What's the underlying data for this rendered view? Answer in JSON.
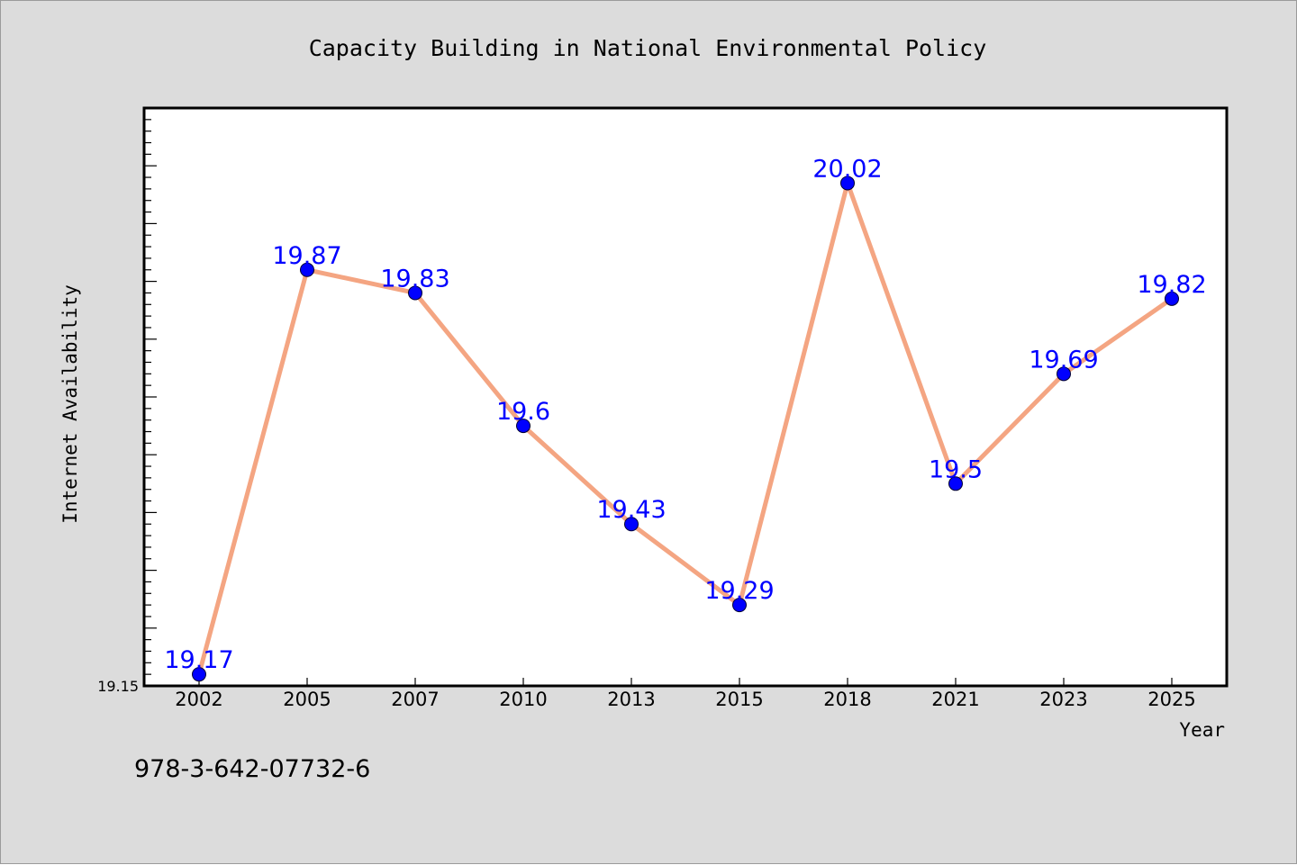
{
  "chart_data": {
    "type": "line",
    "title": "Capacity Building in National Environmental Policy",
    "xlabel": "Year",
    "ylabel": "Internet Availability",
    "categories": [
      "2002",
      "2005",
      "2007",
      "2010",
      "2013",
      "2015",
      "2018",
      "2021",
      "2023",
      "2025"
    ],
    "series": [
      {
        "values": [
          19.17,
          19.87,
          19.83,
          19.6,
          19.43,
          19.29,
          20.02,
          19.5,
          19.69,
          19.82
        ],
        "point_labels": [
          "19.17",
          "19.87",
          "19.83",
          "19.6",
          "19.43",
          "19.29",
          "20.02",
          "19.5",
          "19.69",
          "19.82"
        ]
      }
    ],
    "ylim": [
      19.15,
      20.15
    ],
    "y_tick_labels": [
      "19.15"
    ],
    "grid": false,
    "line_color": "#f4a582",
    "marker_color": "#0000ff",
    "label_color": "#0000ff"
  },
  "footnote": "978-3-642-07732-6",
  "colors": {
    "background": "#dcdcdc",
    "plot_area": "#ffffff",
    "axis": "#000000"
  }
}
